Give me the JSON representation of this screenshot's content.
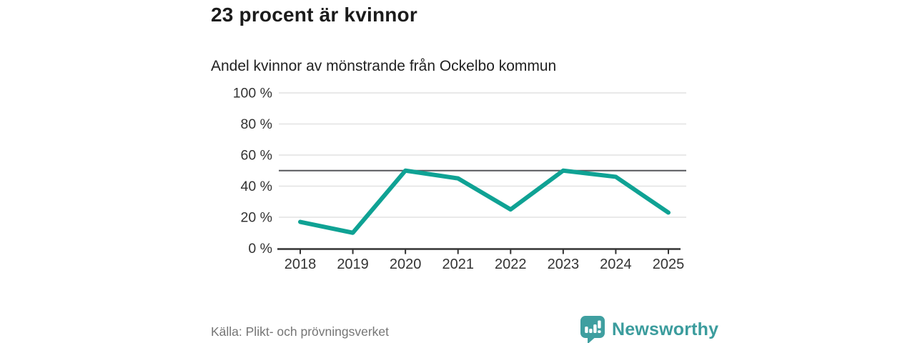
{
  "page": {
    "title": "23 procent är kvinnor",
    "subtitle": "Andel kvinnor av mönstrande från Ockelbo kommun",
    "source": "Källa: Plikt- och prövningsverket",
    "brand_name": "Newsworthy"
  },
  "icons": {
    "brand_logo": "newsworthy-speech-bubble-bar-chart-icon"
  },
  "colors": {
    "line": "#0fa294",
    "gridline": "#e2e2e2",
    "axis": "#333333",
    "reference_line": "#56575b",
    "tick_text": "#333333",
    "source_text": "#757575",
    "brand_teal": "#3f9fa0"
  },
  "chart_data": {
    "type": "line",
    "title": "23 procent är kvinnor",
    "subtitle": "Andel kvinnor av mönstrande från Ockelbo kommun",
    "categories": [
      "2018",
      "2019",
      "2020",
      "2021",
      "2022",
      "2023",
      "2024",
      "2025"
    ],
    "values": [
      17,
      10,
      50,
      45,
      25,
      50,
      46,
      23
    ],
    "unit": "%",
    "xlabel": "",
    "ylabel": "",
    "ylim": [
      0,
      100
    ],
    "yticks": [
      0,
      20,
      40,
      60,
      80,
      100
    ],
    "ytick_suffix": " %",
    "reference_line": 50,
    "grid": true,
    "legend": "none",
    "source": "Källa: Plikt- och prövningsverket"
  }
}
